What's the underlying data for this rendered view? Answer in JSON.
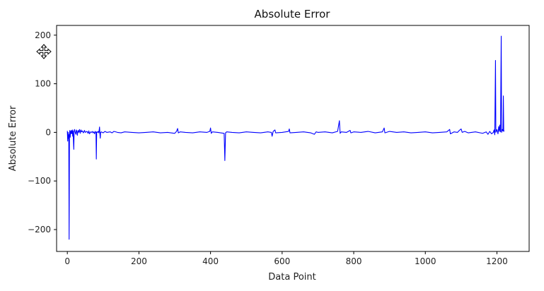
{
  "chart_data": {
    "type": "line",
    "title": "Absolute Error",
    "xlabel": "Data Point",
    "ylabel": "Absolute Error",
    "xlim": [
      -30,
      1290
    ],
    "ylim": [
      -245,
      220
    ],
    "xticks": [
      0,
      200,
      400,
      600,
      800,
      1000,
      1200
    ],
    "yticks": [
      -200,
      -100,
      0,
      100,
      200
    ],
    "grid": false,
    "series": [
      {
        "color": "#0000ff",
        "points": [
          [
            0,
            3
          ],
          [
            1,
            -18
          ],
          [
            2,
            0
          ],
          [
            3,
            -12
          ],
          [
            4,
            -5
          ],
          [
            5,
            -220
          ],
          [
            6,
            -2
          ],
          [
            7,
            4
          ],
          [
            8,
            -10
          ],
          [
            9,
            2
          ],
          [
            10,
            -2
          ],
          [
            11,
            4
          ],
          [
            12,
            -3
          ],
          [
            14,
            5
          ],
          [
            15,
            -8
          ],
          [
            16,
            3
          ],
          [
            18,
            -35
          ],
          [
            19,
            2
          ],
          [
            20,
            6
          ],
          [
            22,
            0
          ],
          [
            24,
            -4
          ],
          [
            25,
            5
          ],
          [
            27,
            1
          ],
          [
            28,
            -6
          ],
          [
            30,
            4
          ],
          [
            32,
            0
          ],
          [
            34,
            6
          ],
          [
            36,
            -2
          ],
          [
            38,
            5
          ],
          [
            40,
            1
          ],
          [
            42,
            3
          ],
          [
            45,
            -1
          ],
          [
            48,
            4
          ],
          [
            50,
            0
          ],
          [
            55,
            2
          ],
          [
            58,
            -2
          ],
          [
            60,
            3
          ],
          [
            62,
            -3
          ],
          [
            65,
            1
          ],
          [
            68,
            0
          ],
          [
            70,
            2
          ],
          [
            72,
            -1
          ],
          [
            74,
            1
          ],
          [
            75,
            0
          ],
          [
            76,
            -3
          ],
          [
            78,
            2
          ],
          [
            80,
            0
          ],
          [
            81,
            -55
          ],
          [
            82,
            1
          ],
          [
            84,
            0
          ],
          [
            86,
            2
          ],
          [
            88,
            -1
          ],
          [
            90,
            11
          ],
          [
            91,
            -3
          ],
          [
            92,
            -12
          ],
          [
            93,
            0
          ],
          [
            95,
            1
          ],
          [
            100,
            -1
          ],
          [
            105,
            2
          ],
          [
            110,
            0
          ],
          [
            120,
            1
          ],
          [
            125,
            -1
          ],
          [
            130,
            2
          ],
          [
            140,
            0
          ],
          [
            150,
            -1
          ],
          [
            160,
            1
          ],
          [
            180,
            0
          ],
          [
            200,
            -1
          ],
          [
            220,
            0
          ],
          [
            240,
            1
          ],
          [
            260,
            -1
          ],
          [
            280,
            0
          ],
          [
            300,
            -2
          ],
          [
            305,
            2
          ],
          [
            308,
            8
          ],
          [
            310,
            -1
          ],
          [
            315,
            1
          ],
          [
            330,
            0
          ],
          [
            350,
            -1
          ],
          [
            370,
            1
          ],
          [
            390,
            0
          ],
          [
            398,
            2
          ],
          [
            400,
            9
          ],
          [
            402,
            -2
          ],
          [
            405,
            1
          ],
          [
            420,
            0
          ],
          [
            438,
            -2
          ],
          [
            440,
            -58
          ],
          [
            442,
            -1
          ],
          [
            445,
            1
          ],
          [
            460,
            0
          ],
          [
            480,
            -1
          ],
          [
            500,
            1
          ],
          [
            520,
            0
          ],
          [
            540,
            -1
          ],
          [
            560,
            1
          ],
          [
            570,
            0
          ],
          [
            572,
            -8
          ],
          [
            575,
            2
          ],
          [
            580,
            5
          ],
          [
            582,
            -1
          ],
          [
            600,
            0
          ],
          [
            618,
            2
          ],
          [
            620,
            7
          ],
          [
            622,
            -1
          ],
          [
            640,
            0
          ],
          [
            660,
            1
          ],
          [
            680,
            -1
          ],
          [
            690,
            -4
          ],
          [
            695,
            1
          ],
          [
            700,
            0
          ],
          [
            720,
            1
          ],
          [
            740,
            -1
          ],
          [
            755,
            2
          ],
          [
            760,
            24
          ],
          [
            762,
            -2
          ],
          [
            765,
            1
          ],
          [
            780,
            0
          ],
          [
            790,
            4
          ],
          [
            792,
            -1
          ],
          [
            800,
            1
          ],
          [
            820,
            0
          ],
          [
            840,
            2
          ],
          [
            860,
            -1
          ],
          [
            880,
            1
          ],
          [
            885,
            9
          ],
          [
            887,
            -1
          ],
          [
            900,
            2
          ],
          [
            920,
            0
          ],
          [
            940,
            1
          ],
          [
            960,
            -1
          ],
          [
            980,
            0
          ],
          [
            1000,
            1
          ],
          [
            1020,
            -1
          ],
          [
            1040,
            0
          ],
          [
            1060,
            1
          ],
          [
            1068,
            6
          ],
          [
            1070,
            -3
          ],
          [
            1080,
            1
          ],
          [
            1090,
            0
          ],
          [
            1095,
            4
          ],
          [
            1100,
            7
          ],
          [
            1103,
            0
          ],
          [
            1110,
            2
          ],
          [
            1120,
            -1
          ],
          [
            1140,
            1
          ],
          [
            1160,
            -2
          ],
          [
            1170,
            1
          ],
          [
            1175,
            -4
          ],
          [
            1180,
            2
          ],
          [
            1185,
            -3
          ],
          [
            1190,
            0
          ],
          [
            1192,
            5
          ],
          [
            1194,
            -5
          ],
          [
            1196,
            148
          ],
          [
            1197,
            0
          ],
          [
            1200,
            6
          ],
          [
            1203,
            -3
          ],
          [
            1205,
            12
          ],
          [
            1207,
            2
          ],
          [
            1208,
            15
          ],
          [
            1210,
            1
          ],
          [
            1212,
            198
          ],
          [
            1213,
            0
          ],
          [
            1215,
            6
          ],
          [
            1217,
            3
          ],
          [
            1218,
            75
          ],
          [
            1219,
            2
          ],
          [
            1220,
            4
          ]
        ]
      }
    ]
  }
}
